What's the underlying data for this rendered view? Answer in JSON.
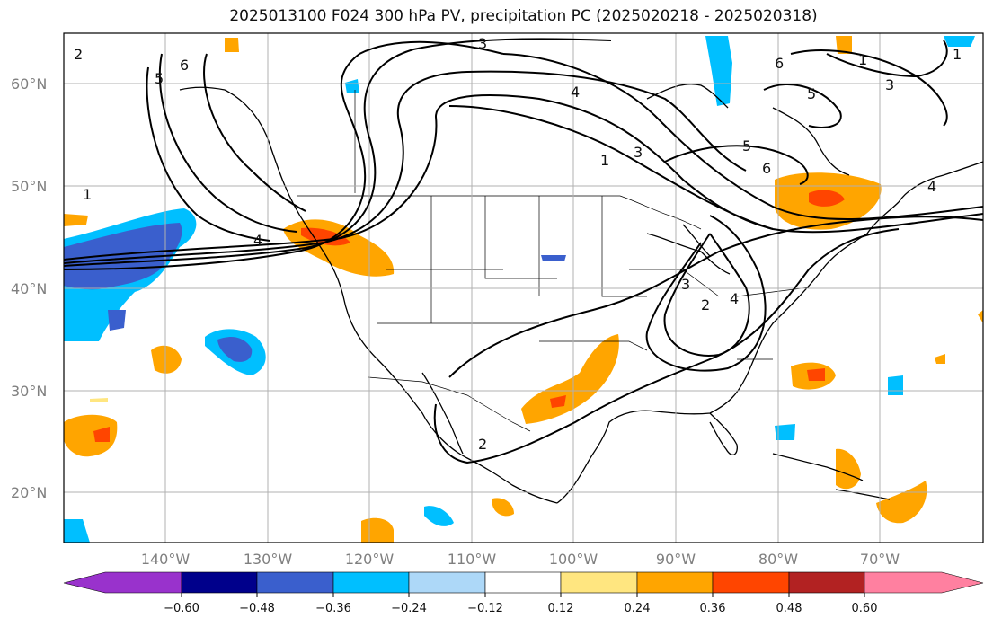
{
  "title": "2025013100 F024 300 hPa PV, precipitation PC (2025020218 - 2025020318)",
  "map": {
    "lat_labels": [
      {
        "value": 60,
        "text": "60°N"
      },
      {
        "value": 50,
        "text": "50°N"
      },
      {
        "value": 40,
        "text": "40°N"
      },
      {
        "value": 30,
        "text": "30°N"
      },
      {
        "value": 20,
        "text": "20°N"
      }
    ],
    "lon_labels": [
      {
        "value": -140,
        "text": "140°W"
      },
      {
        "value": -130,
        "text": "130°W"
      },
      {
        "value": -120,
        "text": "120°W"
      },
      {
        "value": -110,
        "text": "110°W"
      },
      {
        "value": -100,
        "text": "100°W"
      },
      {
        "value": -90,
        "text": "90°W"
      },
      {
        "value": -80,
        "text": "80°W"
      },
      {
        "value": -70,
        "text": "70°W"
      }
    ],
    "lat_range": [
      15,
      65
    ],
    "lon_range": [
      -150,
      -60
    ],
    "grid": true,
    "pv_contour_labels": [
      "6",
      "5",
      "4",
      "3",
      "2",
      "1",
      "4",
      "3",
      "5",
      "6",
      "4",
      "5",
      "2",
      "1",
      "3",
      "6",
      "1",
      "4",
      "2",
      "3",
      "1"
    ]
  },
  "colorbar": {
    "tick_labels": [
      "−0.60",
      "−0.48",
      "−0.36",
      "−0.24",
      "−0.12",
      "0.12",
      "0.24",
      "0.36",
      "0.48",
      "0.60"
    ],
    "colors": [
      "#9932cc",
      "#00008b",
      "#3a5fcd",
      "#00bfff",
      "#add8f8",
      "#ffffff",
      "#ffe680",
      "#ffa500",
      "#ff4500",
      "#b22222",
      "#ff80a0"
    ]
  },
  "colors": {
    "ocean_bg": "#ffffff",
    "coast": "#000000",
    "grid": "#b0b0b0",
    "pv_contour": "#000000"
  }
}
